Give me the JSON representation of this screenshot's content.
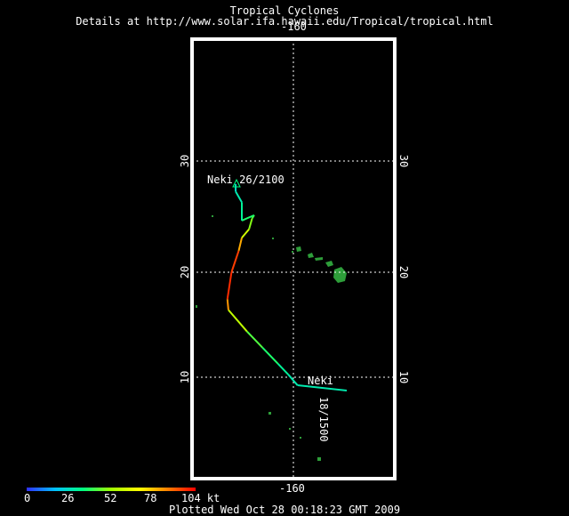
{
  "header": {
    "title": "Tropical Cyclones",
    "subtitle": "Details at http://www.solar.ifa.hawaii.edu/Tropical/tropical.html"
  },
  "map": {
    "lon_labels": [
      "-160",
      "-160"
    ],
    "lat_labels": [
      "30",
      "20",
      "10",
      "30",
      "20",
      "10"
    ],
    "storm_labels": [
      "Neki 26/2100",
      "Neki",
      "18/1500"
    ],
    "colors": {
      "frame": "#ffffff",
      "grid": "#ffffff",
      "land": "#2e9e3a"
    },
    "track": [
      {
        "lon": -159.6,
        "lat": 9.5,
        "kt": 35
      },
      {
        "lon": -160.5,
        "lat": 10.5,
        "kt": 35
      },
      {
        "lon": -161.5,
        "lat": 11.5,
        "kt": 40
      },
      {
        "lon": -163.0,
        "lat": 13.0,
        "kt": 45
      },
      {
        "lon": -164.5,
        "lat": 14.5,
        "kt": 50
      },
      {
        "lon": -166.3,
        "lat": 16.5,
        "kt": 70
      },
      {
        "lon": -166.4,
        "lat": 17.5,
        "kt": 95
      },
      {
        "lon": -166.0,
        "lat": 20.0,
        "kt": 100
      },
      {
        "lon": -165.3,
        "lat": 22.0,
        "kt": 90
      },
      {
        "lon": -165.0,
        "lat": 23.2,
        "kt": 70
      },
      {
        "lon": -164.3,
        "lat": 24.0,
        "kt": 55
      },
      {
        "lon": -164.0,
        "lat": 25.0,
        "kt": 50
      },
      {
        "lon": -163.8,
        "lat": 25.3,
        "kt": 45
      },
      {
        "lon": -165.0,
        "lat": 24.8,
        "kt": 40
      },
      {
        "lon": -165.0,
        "lat": 26.5,
        "kt": 35
      },
      {
        "lon": -165.6,
        "lat": 27.5,
        "kt": 35
      },
      {
        "lon": -165.6,
        "lat": 28.2,
        "kt": 30
      }
    ]
  },
  "legend": {
    "ticks": [
      "0",
      "26",
      "52",
      "78",
      "104 kt"
    ]
  },
  "footer": {
    "plotted": "Plotted Wed Oct 28 00:18:23 GMT 2009"
  }
}
